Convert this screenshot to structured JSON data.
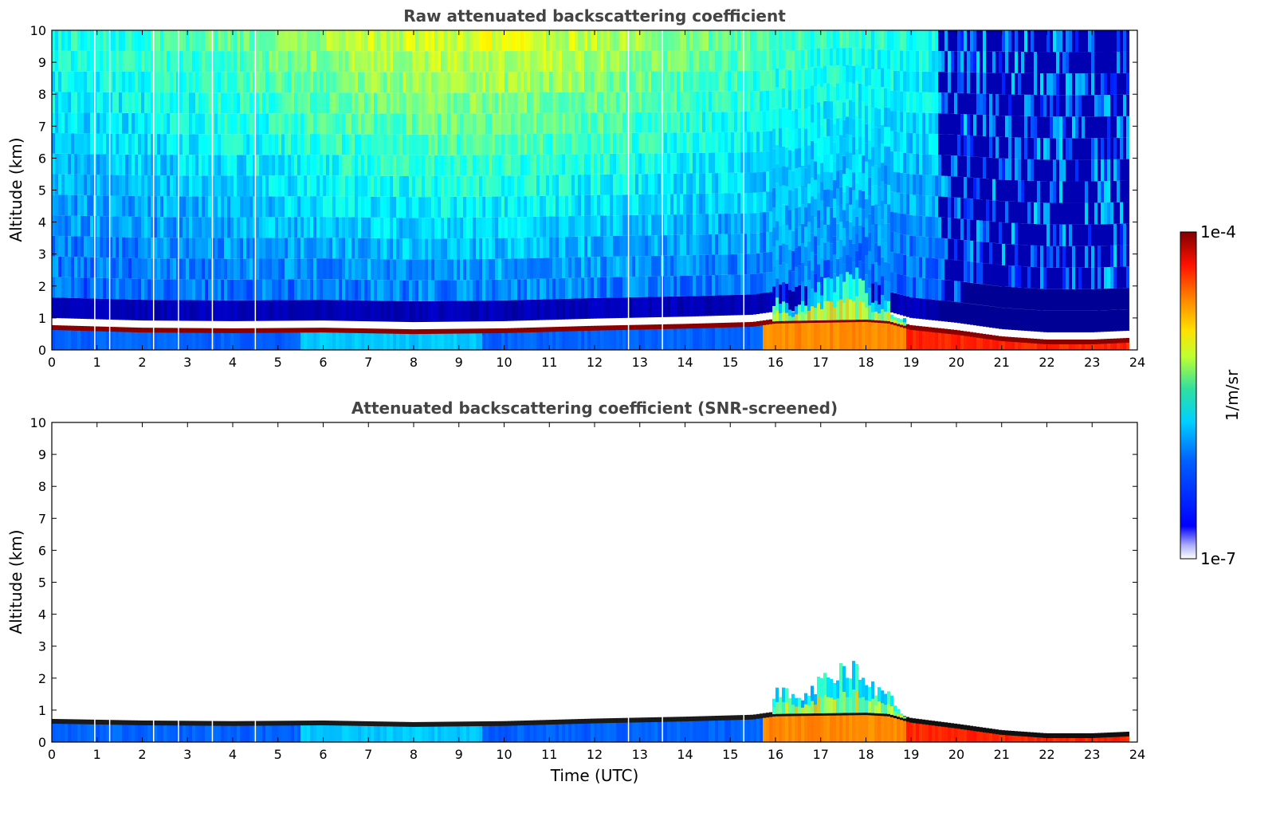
{
  "chart_data": [
    {
      "type": "heatmap",
      "title": "Raw attenuated backscattering coefficient",
      "xlabel": "",
      "ylabel": "Altitude (km)",
      "xlim": [
        0,
        24
      ],
      "ylim": [
        0,
        10
      ],
      "xticks": [
        0,
        1,
        2,
        3,
        4,
        5,
        6,
        7,
        8,
        9,
        10,
        11,
        12,
        13,
        14,
        15,
        16,
        17,
        18,
        19,
        20,
        21,
        22,
        23,
        24
      ],
      "yticks": [
        0,
        1,
        2,
        3,
        4,
        5,
        6,
        7,
        8,
        9,
        10
      ],
      "screened": false,
      "cloud_base_km": [
        [
          0,
          0.7
        ],
        [
          2,
          0.62
        ],
        [
          4,
          0.6
        ],
        [
          6,
          0.62
        ],
        [
          8,
          0.57
        ],
        [
          10,
          0.6
        ],
        [
          12,
          0.68
        ],
        [
          14,
          0.74
        ],
        [
          15.5,
          0.8
        ],
        [
          16,
          0.9
        ],
        [
          18,
          0.95
        ],
        [
          18.5,
          0.9
        ],
        [
          19,
          0.7
        ],
        [
          20,
          0.55
        ],
        [
          21,
          0.35
        ],
        [
          22,
          0.25
        ],
        [
          23,
          0.25
        ],
        [
          23.8,
          0.3
        ]
      ],
      "convective_tops_km": [
        [
          16,
          1.7
        ],
        [
          16.5,
          1.5
        ],
        [
          17,
          2.2
        ],
        [
          17.5,
          2.5
        ],
        [
          17.8,
          2.6
        ],
        [
          18.1,
          2.0
        ],
        [
          18.5,
          1.6
        ],
        [
          18.8,
          1.0
        ]
      ]
    },
    {
      "type": "heatmap",
      "title": "Attenuated backscattering coefficient (SNR-screened)",
      "xlabel": "Time (UTC)",
      "ylabel": "Altitude (km)",
      "xlim": [
        0,
        24
      ],
      "ylim": [
        0,
        10
      ],
      "xticks": [
        0,
        1,
        2,
        3,
        4,
        5,
        6,
        7,
        8,
        9,
        10,
        11,
        12,
        13,
        14,
        15,
        16,
        17,
        18,
        19,
        20,
        21,
        22,
        23,
        24
      ],
      "yticks": [
        0,
        1,
        2,
        3,
        4,
        5,
        6,
        7,
        8,
        9,
        10
      ],
      "screened": true,
      "cloud_base_km": [
        [
          0,
          0.65
        ],
        [
          2,
          0.6
        ],
        [
          4,
          0.58
        ],
        [
          6,
          0.6
        ],
        [
          8,
          0.55
        ],
        [
          10,
          0.58
        ],
        [
          12,
          0.66
        ],
        [
          14,
          0.72
        ],
        [
          15.5,
          0.78
        ],
        [
          16,
          0.88
        ],
        [
          18,
          0.92
        ],
        [
          18.5,
          0.88
        ],
        [
          19,
          0.68
        ],
        [
          20,
          0.5
        ],
        [
          21,
          0.3
        ],
        [
          22,
          0.2
        ],
        [
          23,
          0.2
        ],
        [
          23.8,
          0.25
        ]
      ],
      "convective_tops_km": [
        [
          16,
          1.8
        ],
        [
          16.5,
          1.6
        ],
        [
          17,
          2.1
        ],
        [
          17.5,
          2.6
        ],
        [
          17.8,
          2.65
        ],
        [
          18.1,
          2.0
        ],
        [
          18.5,
          1.7
        ],
        [
          18.8,
          1.0
        ]
      ]
    }
  ],
  "colorbar": {
    "label": "1/m/sr",
    "max_label": "1e-4",
    "min_label": "1e-7",
    "scale": "log",
    "range": [
      1e-07,
      0.0001
    ],
    "colormap": "jet"
  }
}
